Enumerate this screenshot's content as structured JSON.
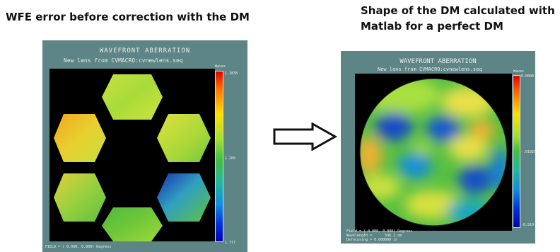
{
  "left": {
    "heading": "WFE error before correction with the DM",
    "panel_title": "WAVEFRONT ABERRATION",
    "panel_subtitle": "New lens from CVMACRO:cvnewlens.seq",
    "colorbar_unit": "Waves",
    "colorbar_top": "1.1838",
    "colorbar_mid": "1.200",
    "colorbar_bottom": "1.777",
    "footer": "FIELD = ( 0.000, 0.000) Degrees"
  },
  "arrow": {
    "icon": "right-arrow-icon"
  },
  "right": {
    "heading_line1": "Shape of the DM calculated with",
    "heading_line2": "Matlab for a perfect DM",
    "panel_title": "WAVEFRONT ABERRATION",
    "panel_subtitle": "New lens from CVMACRO:cvnewlens.seq",
    "colorbar_unit": "Waves",
    "colorbar_top": "0.0000",
    "colorbar_mid": "-.01925",
    "colorbar_bottom": "-0.919",
    "footer_line1": "Field = ( 0.000, 0.000) Degrees",
    "footer_line2": "Wavelength =      546.1 nm",
    "footer_line3": "Defocusing = 0.000000 in"
  }
}
